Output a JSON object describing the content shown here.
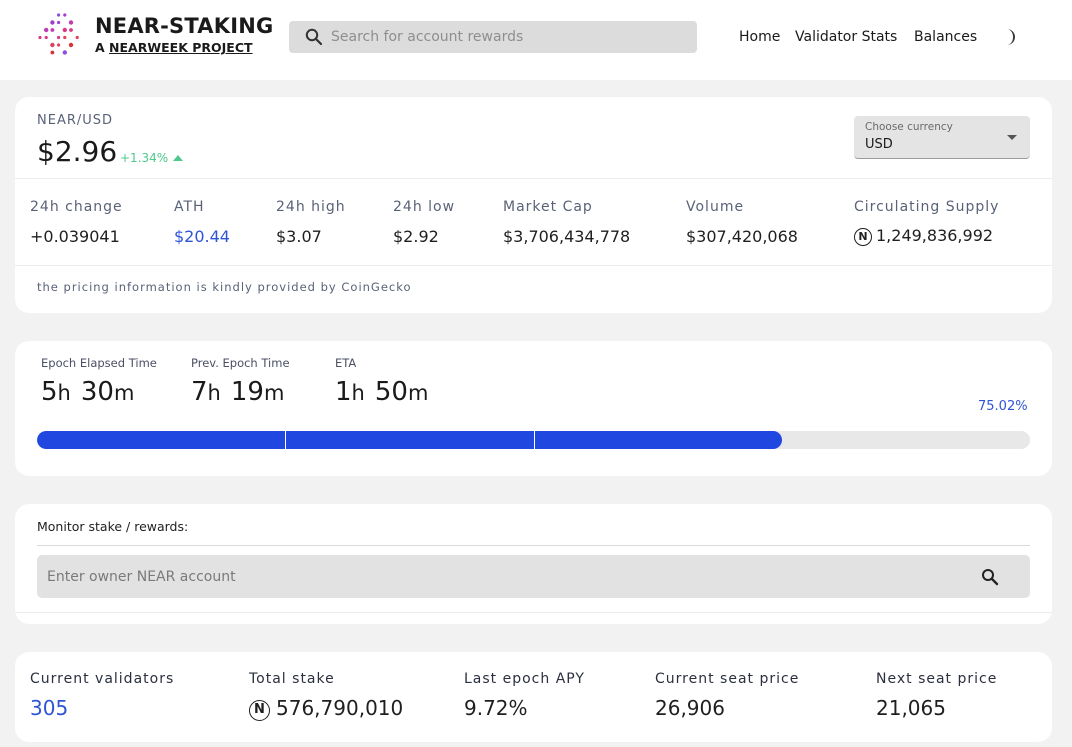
{
  "header": {
    "title": "NEAR-STAKING",
    "subtitle_prefix": "A ",
    "subtitle_link": "NEARWEEK PROJECT",
    "search_placeholder": "Search for account rewards",
    "nav": [
      "Home",
      "Validator Stats",
      "Balances"
    ],
    "theme_icon": "moon-icon"
  },
  "price": {
    "pair": "NEAR/USD",
    "value": "$2.96",
    "change_pct": "+1.34%",
    "currency_label": "Choose currency",
    "currency_value": "USD",
    "stats": [
      {
        "label": "24h change",
        "value": "+0.039041"
      },
      {
        "label": "ATH",
        "value": "$20.44"
      },
      {
        "label": "24h high",
        "value": "$3.07"
      },
      {
        "label": "24h low",
        "value": "$2.92"
      },
      {
        "label": "Market Cap",
        "value": "$3,706,434,778"
      },
      {
        "label": "Volume",
        "value": "$307,420,068"
      },
      {
        "label": "Circulating Supply",
        "value": "1,249,836,992"
      }
    ],
    "near_symbol": "N",
    "credit": "the pricing information is kindly provided by CoinGecko",
    "colors": {
      "positive": "#4ec98d",
      "accent": "#2e55d6"
    }
  },
  "epoch": {
    "elapsed_label": "Epoch Elapsed Time",
    "elapsed_h": "5",
    "elapsed_m": "30",
    "prev_label": "Prev. Epoch Time",
    "prev_h": "7",
    "prev_m": "19",
    "eta_label": "ETA",
    "eta_h": "1",
    "eta_m": "50",
    "unit_h": "h",
    "unit_m": "m",
    "progress_pct": "75.02%",
    "progress": 0.7502,
    "bar_color": "#2048e0"
  },
  "monitor": {
    "label": "Monitor stake / rewards:",
    "placeholder": "Enter owner NEAR account"
  },
  "validators": {
    "items": [
      {
        "label": "Current validators",
        "value": "305"
      },
      {
        "label": "Total stake",
        "value": "576,790,010"
      },
      {
        "label": "Last epoch APY",
        "value": "9.72%"
      },
      {
        "label": "Current seat price",
        "value": "26,906"
      },
      {
        "label": "Next seat price",
        "value": "21,065"
      }
    ]
  }
}
